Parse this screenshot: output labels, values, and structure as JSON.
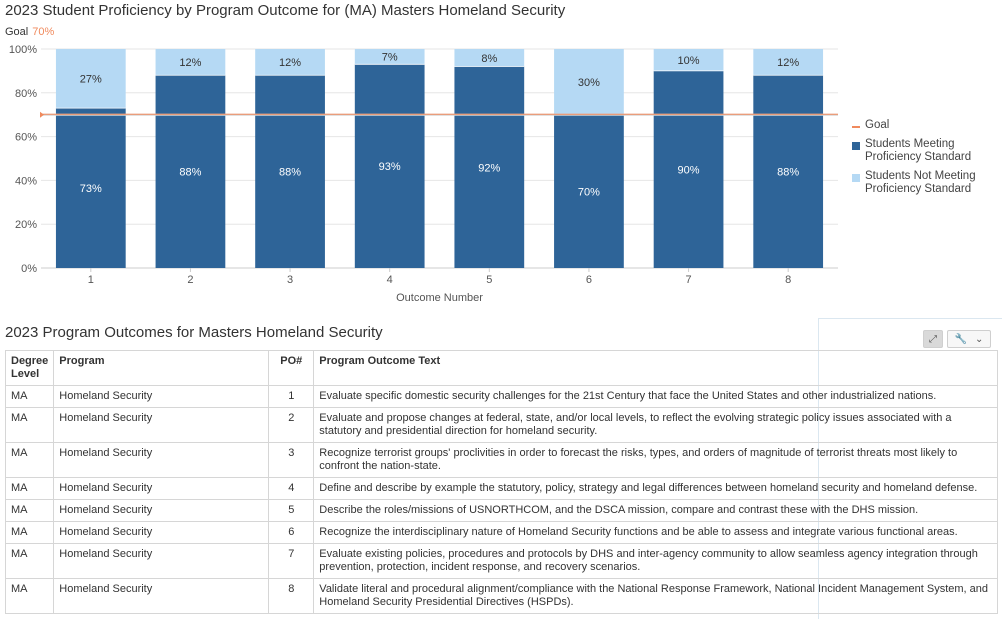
{
  "colors": {
    "meeting": "#2e6498",
    "not_meeting": "#b5d9f4",
    "goal": "#f08a5d",
    "grid": "#e6e6e6",
    "axis": "#cccccc"
  },
  "chart": {
    "title": "2023 Student Proficiency by Program Outcome for (MA) Masters Homeland Security",
    "goal_label": "Goal",
    "goal_value_text": "70%",
    "legend": [
      {
        "label": "Goal"
      },
      {
        "label": "Students Meeting Proficiency Standard"
      },
      {
        "label": "Students Not Meeting Proficiency Standard"
      }
    ]
  },
  "chart_data": {
    "type": "bar",
    "stacked": true,
    "categories": [
      "1",
      "2",
      "3",
      "4",
      "5",
      "6",
      "7",
      "8"
    ],
    "series": [
      {
        "name": "Students Meeting Proficiency Standard",
        "values": [
          73,
          88,
          88,
          93,
          92,
          70,
          90,
          88
        ]
      },
      {
        "name": "Students Not Meeting Proficiency Standard",
        "values": [
          27,
          12,
          12,
          7,
          8,
          30,
          10,
          12
        ]
      }
    ],
    "data_labels": {
      "meeting": [
        "73%",
        "88%",
        "88%",
        "93%",
        "92%",
        "70%",
        "90%",
        "88%"
      ],
      "not_meeting": [
        "27%",
        "12%",
        "12%",
        "7%",
        "8%",
        "30%",
        "10%",
        "12%"
      ]
    },
    "goal": 70,
    "xlabel": "Outcome Number",
    "ylabel": "",
    "ylim": [
      0,
      100
    ],
    "yticks": [
      0,
      20,
      40,
      60,
      80,
      100
    ],
    "ytick_labels": [
      "0%",
      "20%",
      "40%",
      "60%",
      "80%",
      "100%"
    ],
    "grid": true,
    "legend_position": "right"
  },
  "table": {
    "title": "2023 Program Outcomes for Masters Homeland Security",
    "headers": {
      "degree": "Degree Level",
      "program": "Program",
      "po": "PO#",
      "text": "Program Outcome Text"
    },
    "rows": [
      {
        "degree": "MA",
        "program": "Homeland Security",
        "po": "1",
        "text": "Evaluate specific domestic security challenges for the 21st Century that face the United States and other industrialized nations."
      },
      {
        "degree": "MA",
        "program": "Homeland Security",
        "po": "2",
        "text": "Evaluate and propose changes at federal, state, and/or local levels, to reflect the evolving strategic policy issues associated with a statutory and presidential direction for homeland security."
      },
      {
        "degree": "MA",
        "program": "Homeland Security",
        "po": "3",
        "text": "Recognize terrorist groups' proclivities in order to forecast the risks, types, and orders of magnitude of terrorist threats most likely to confront the nation-state."
      },
      {
        "degree": "MA",
        "program": "Homeland Security",
        "po": "4",
        "text": "Define and describe by example the statutory, policy, strategy and legal differences between homeland security and homeland defense."
      },
      {
        "degree": "MA",
        "program": "Homeland Security",
        "po": "5",
        "text": "Describe the roles/missions of USNORTHCOM, and the DSCA mission, compare and contrast these with the DHS mission."
      },
      {
        "degree": "MA",
        "program": "Homeland Security",
        "po": "6",
        "text": "Recognize the interdisciplinary nature of Homeland Security functions and be able to assess and integrate various functional areas."
      },
      {
        "degree": "MA",
        "program": "Homeland Security",
        "po": "7",
        "text": "Evaluate existing policies, procedures and protocols by DHS and inter-agency community to allow seamless agency integration through prevention, protection, incident response, and recovery scenarios."
      },
      {
        "degree": "MA",
        "program": "Homeland Security",
        "po": "8",
        "text": "Validate literal and procedural alignment/compliance with the National Response Framework, National Incident Management System, and Homeland Security Presidential Directives (HSPDs)."
      }
    ]
  },
  "toolbar": {
    "expand_icon": "expand-icon",
    "tools_icon": "wrench-icon",
    "dropdown_icon": "chevron-down-icon"
  }
}
